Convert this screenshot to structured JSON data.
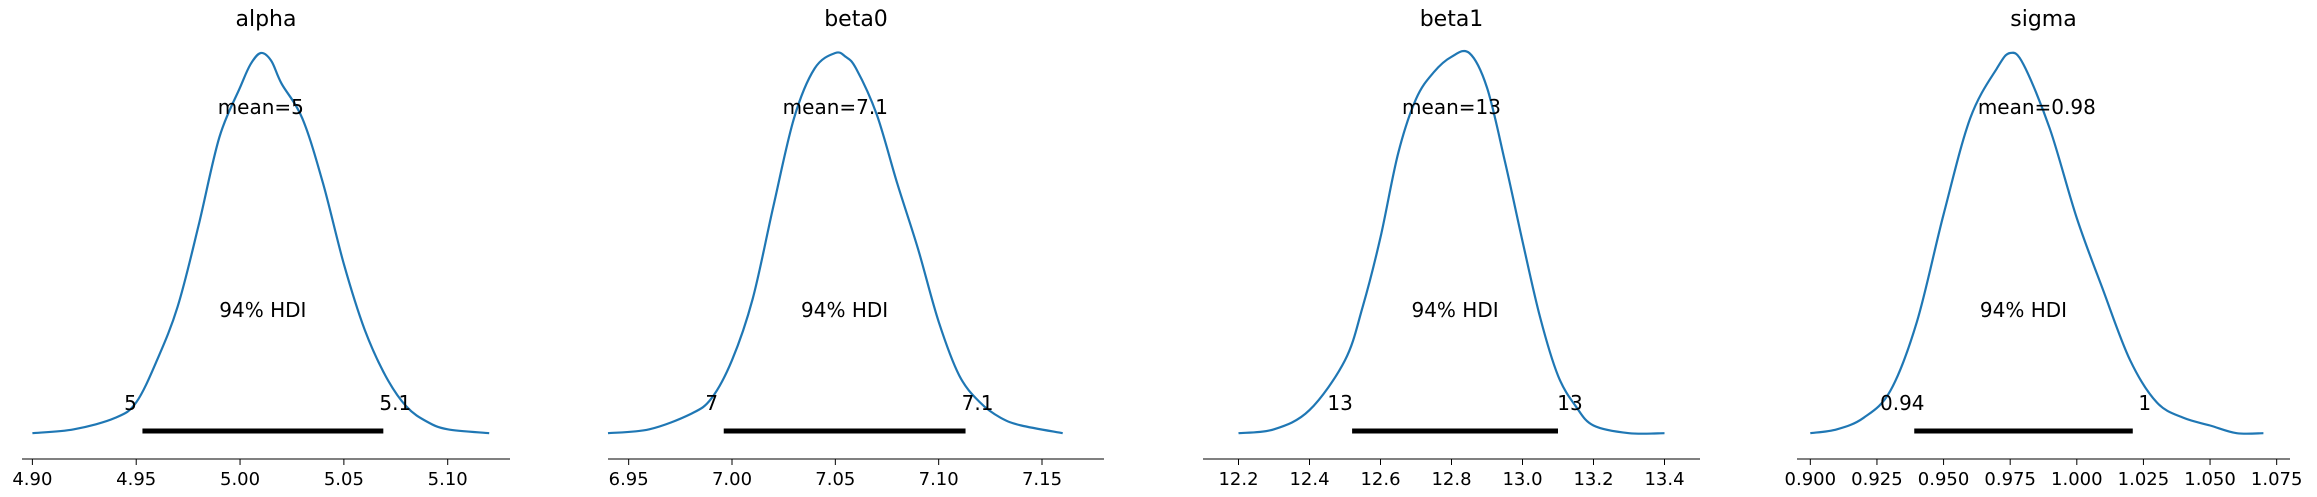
{
  "chart_data": [
    {
      "type": "line",
      "title": "alpha",
      "mean_label": "mean=5",
      "hdi_label": "94% HDI",
      "hdi_low_label": "5",
      "hdi_high_label": "5.1",
      "hdi": [
        4.953,
        5.069
      ],
      "xlim": [
        4.895,
        5.13
      ],
      "ticks": [
        4.9,
        4.95,
        5.0,
        5.05,
        5.1
      ],
      "tick_labels": [
        "4.90",
        "4.95",
        "5.00",
        "5.05",
        "5.10"
      ],
      "x": [
        4.9,
        4.92,
        4.94,
        4.95,
        4.96,
        4.97,
        4.98,
        4.99,
        5.0,
        5.005,
        5.01,
        5.015,
        5.02,
        5.03,
        5.04,
        5.05,
        5.06,
        5.07,
        5.08,
        5.09,
        5.1,
        5.12
      ],
      "y": [
        0.01,
        0.02,
        0.05,
        0.09,
        0.2,
        0.34,
        0.55,
        0.78,
        0.91,
        0.97,
        1.0,
        0.98,
        0.92,
        0.83,
        0.66,
        0.45,
        0.28,
        0.16,
        0.08,
        0.04,
        0.02,
        0.01
      ]
    },
    {
      "type": "line",
      "title": "beta0",
      "mean_label": "mean=7.1",
      "hdi_label": "94% HDI",
      "hdi_low_label": "7",
      "hdi_high_label": "7.1",
      "hdi": [
        6.996,
        7.113
      ],
      "xlim": [
        6.94,
        7.18
      ],
      "ticks": [
        6.95,
        7.0,
        7.05,
        7.1,
        7.15
      ],
      "tick_labels": [
        "6.95",
        "7.00",
        "7.05",
        "7.10",
        "7.15"
      ],
      "x": [
        6.94,
        6.96,
        6.98,
        6.99,
        7.0,
        7.01,
        7.02,
        7.03,
        7.04,
        7.05,
        7.055,
        7.06,
        7.07,
        7.08,
        7.09,
        7.1,
        7.11,
        7.12,
        7.13,
        7.14,
        7.16
      ],
      "y": [
        0.01,
        0.02,
        0.06,
        0.1,
        0.2,
        0.36,
        0.6,
        0.83,
        0.96,
        1.0,
        0.99,
        0.96,
        0.84,
        0.66,
        0.49,
        0.3,
        0.16,
        0.09,
        0.05,
        0.03,
        0.01
      ]
    },
    {
      "type": "line",
      "title": "beta1",
      "mean_label": "mean=13",
      "hdi_label": "94% HDI",
      "hdi_low_label": "13",
      "hdi_high_label": "13",
      "hdi": [
        12.52,
        13.1
      ],
      "xlim": [
        12.1,
        13.5
      ],
      "ticks": [
        12.2,
        12.4,
        12.6,
        12.8,
        13.0,
        13.2,
        13.4
      ],
      "tick_labels": [
        "12.2",
        "12.4",
        "12.6",
        "12.8",
        "13.0",
        "13.2",
        "13.4"
      ],
      "x": [
        12.2,
        12.3,
        12.4,
        12.5,
        12.55,
        12.6,
        12.65,
        12.7,
        12.75,
        12.8,
        12.85,
        12.9,
        12.95,
        13.0,
        13.05,
        13.1,
        13.15,
        13.2,
        13.3,
        13.4
      ],
      "y": [
        0.01,
        0.02,
        0.07,
        0.2,
        0.34,
        0.52,
        0.74,
        0.88,
        0.95,
        0.99,
        1.0,
        0.91,
        0.72,
        0.51,
        0.31,
        0.16,
        0.08,
        0.03,
        0.01,
        0.01
      ]
    },
    {
      "type": "line",
      "title": "sigma",
      "mean_label": "mean=0.98",
      "hdi_label": "94% HDI",
      "hdi_low_label": "0.94",
      "hdi_high_label": "1",
      "hdi": [
        0.939,
        1.021
      ],
      "xlim": [
        0.895,
        1.08
      ],
      "ticks": [
        0.9,
        0.925,
        0.95,
        0.975,
        1.0,
        1.025,
        1.05,
        1.075
      ],
      "tick_labels": [
        "0.900",
        "0.925",
        "0.950",
        "0.975",
        "1.000",
        "1.025",
        "1.050",
        "1.075"
      ],
      "x": [
        0.9,
        0.91,
        0.92,
        0.93,
        0.94,
        0.95,
        0.96,
        0.97,
        0.975,
        0.98,
        0.99,
        1.0,
        1.01,
        1.02,
        1.03,
        1.04,
        1.05,
        1.06,
        1.07
      ],
      "y": [
        0.01,
        0.02,
        0.05,
        0.12,
        0.3,
        0.58,
        0.83,
        0.96,
        1.0,
        0.97,
        0.8,
        0.57,
        0.38,
        0.2,
        0.09,
        0.05,
        0.03,
        0.01,
        0.01
      ]
    }
  ]
}
